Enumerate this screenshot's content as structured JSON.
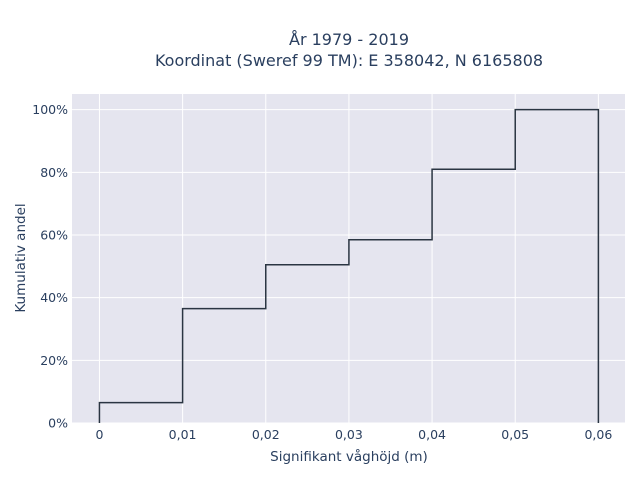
{
  "chart_data": {
    "type": "step",
    "title_line1": "År 1979 - 2019",
    "title_line2": "Koordinat (Sweref 99 TM): E 358042, N 6165808",
    "xlabel": "Signifikant våghöjd (m)",
    "ylabel": "Kumulativ andel",
    "x_ticks": [
      0,
      0.01,
      0.02,
      0.03,
      0.04,
      0.05,
      0.06
    ],
    "x_tick_labels": [
      "0",
      "0,01",
      "0,02",
      "0,03",
      "0,04",
      "0,05",
      "0,06"
    ],
    "y_ticks": [
      0,
      0.2,
      0.4,
      0.6,
      0.8,
      1.0
    ],
    "y_tick_labels": [
      "0%",
      "20%",
      "40%",
      "60%",
      "80%",
      "100%"
    ],
    "xlim": [
      -0.0033,
      0.0632
    ],
    "ylim": [
      0,
      1.05
    ],
    "grid": true,
    "colors": {
      "background": "#e5e5ef",
      "grid": "#ffffff",
      "line": "#2a3542"
    },
    "points": [
      {
        "x": 0,
        "y": 0.065
      },
      {
        "x": 0.01,
        "y": 0.365
      },
      {
        "x": 0.02,
        "y": 0.505
      },
      {
        "x": 0.03,
        "y": 0.585
      },
      {
        "x": 0.04,
        "y": 0.81
      },
      {
        "x": 0.05,
        "y": 1.0
      },
      {
        "x": 0.06,
        "y": 1.0
      }
    ]
  }
}
